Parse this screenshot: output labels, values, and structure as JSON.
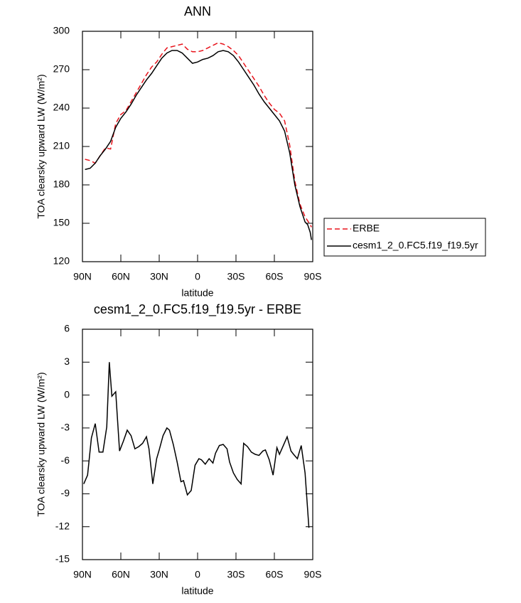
{
  "chart_data": [
    {
      "type": "line",
      "title": "ANN",
      "x_label": "latitude",
      "y_label": "TOA clearsky upward LW (W/m²)",
      "x": [
        88,
        84,
        80,
        76,
        72,
        68,
        64,
        60,
        56,
        52,
        48,
        44,
        40,
        36,
        32,
        28,
        24,
        20,
        16,
        12,
        8,
        4,
        0,
        -4,
        -8,
        -12,
        -16,
        -20,
        -24,
        -28,
        -32,
        -36,
        -40,
        -44,
        -48,
        -52,
        -56,
        -60,
        -64,
        -68,
        -72,
        -76,
        -80,
        -84,
        -86,
        -88,
        -89
      ],
      "series": [
        {
          "name": "ERBE",
          "color": "#e8141c",
          "line_style": "dashed",
          "values": [
            200,
            199,
            197,
            203,
            209,
            208,
            228,
            235,
            238,
            245,
            252,
            259,
            266,
            272,
            276,
            282,
            287,
            288,
            289,
            290,
            286,
            284,
            284,
            285,
            287,
            289,
            291,
            290,
            288,
            285,
            281,
            275,
            269,
            263,
            257,
            250,
            244,
            239,
            236,
            230,
            211,
            183,
            165,
            155,
            152,
            149,
            147
          ]
        },
        {
          "name": "cesm1_2_0.FC5.f19_f19.5yr",
          "color": "#000000",
          "line_style": "solid",
          "values": [
            192,
            193,
            197,
            203,
            208,
            214,
            225,
            232,
            237,
            243,
            250,
            256,
            262,
            267,
            273,
            279,
            283,
            285,
            285,
            283,
            279,
            275,
            276,
            278,
            279,
            281,
            284,
            285,
            284,
            281,
            276,
            270,
            264,
            258,
            251,
            245,
            240,
            235,
            230,
            222,
            205,
            180,
            163,
            151,
            149,
            143,
            137
          ]
        }
      ],
      "xlim": [
        90,
        -90
      ],
      "xticks": [
        {
          "value": 90,
          "label": "90N"
        },
        {
          "value": 60,
          "label": "60N"
        },
        {
          "value": 30,
          "label": "30N"
        },
        0,
        {
          "value": -30,
          "label": "30S"
        },
        {
          "value": -60,
          "label": "60S"
        },
        {
          "value": -90,
          "label": "90S"
        }
      ],
      "ylim": [
        120,
        300
      ],
      "yticks": [
        120,
        150,
        180,
        210,
        240,
        270,
        300
      ],
      "legend": "outside-right"
    },
    {
      "type": "line",
      "title": "cesm1_2_0.FC5.f19_f19.5yr - ERBE",
      "x_label": "latitude",
      "y_label": "TOA clearsky upward LW (W/m²)",
      "x": [
        89,
        86,
        83,
        80,
        77,
        74,
        71,
        69,
        67,
        64,
        61,
        58,
        55,
        52,
        49,
        46,
        43,
        40,
        38,
        35,
        32,
        30,
        27,
        24,
        22,
        19,
        16,
        13,
        11,
        8,
        5,
        2,
        -1,
        -3,
        -6,
        -9,
        -12,
        -14,
        -17,
        -20,
        -23,
        -25,
        -28,
        -31,
        -34,
        -36,
        -39,
        -42,
        -45,
        -48,
        -51,
        -53,
        -56,
        -59,
        -62,
        -64,
        -67,
        -70,
        -73,
        -75,
        -78,
        -81,
        -84,
        -87
      ],
      "values": [
        -8.1,
        -7.3,
        -3.9,
        -2.6,
        -5.2,
        -5.2,
        -2.9,
        3.0,
        -0.1,
        0.3,
        -5.1,
        -4.2,
        -3.2,
        -3.7,
        -4.9,
        -4.7,
        -4.4,
        -3.8,
        -4.9,
        -8.1,
        -5.8,
        -5.0,
        -3.7,
        -3.0,
        -3.2,
        -4.5,
        -6.1,
        -7.9,
        -7.8,
        -9.1,
        -8.7,
        -6.4,
        -5.8,
        -5.9,
        -6.3,
        -5.8,
        -6.2,
        -5.3,
        -4.6,
        -4.5,
        -4.9,
        -6.1,
        -7.1,
        -7.7,
        -8.1,
        -4.4,
        -4.7,
        -5.2,
        -5.4,
        -5.5,
        -5.1,
        -5.0,
        -5.9,
        -7.3,
        -4.8,
        -5.4,
        -4.6,
        -3.8,
        -5.1,
        -5.4,
        -5.8,
        -4.6,
        -7.1,
        -12.1
      ],
      "color": "#000000",
      "xlim": [
        90,
        -90
      ],
      "xticks": [
        {
          "value": 90,
          "label": "90N"
        },
        {
          "value": 60,
          "label": "60N"
        },
        {
          "value": 30,
          "label": "30N"
        },
        0,
        {
          "value": -30,
          "label": "30S"
        },
        {
          "value": -60,
          "label": "60S"
        },
        {
          "value": -90,
          "label": "90S"
        }
      ],
      "ylim": [
        -15,
        6
      ],
      "yticks": [
        -15,
        -12,
        -9,
        -6,
        -3,
        0,
        3,
        6
      ]
    }
  ]
}
